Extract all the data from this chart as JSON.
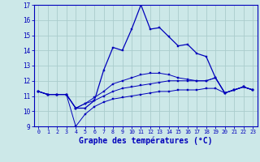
{
  "title": "Graphe des températures (°C)",
  "bg_color": "#cce8e8",
  "grid_color": "#aacccc",
  "line_color": "#0000bb",
  "hours": [
    0,
    1,
    2,
    3,
    4,
    5,
    6,
    7,
    8,
    9,
    10,
    11,
    12,
    13,
    14,
    15,
    16,
    17,
    18,
    19,
    20,
    21,
    22,
    23
  ],
  "temp_main": [
    11.3,
    11.1,
    11.1,
    11.1,
    10.2,
    10.2,
    10.7,
    12.7,
    14.2,
    14.0,
    15.4,
    17.0,
    15.4,
    15.5,
    14.9,
    14.3,
    14.4,
    13.8,
    13.6,
    12.2,
    11.2,
    11.4,
    11.6,
    11.4
  ],
  "temp_low": [
    11.3,
    11.1,
    11.1,
    11.1,
    9.0,
    9.8,
    10.3,
    10.6,
    10.8,
    10.9,
    11.0,
    11.1,
    11.2,
    11.3,
    11.3,
    11.4,
    11.4,
    11.4,
    11.5,
    11.5,
    11.2,
    11.4,
    11.6,
    11.4
  ],
  "temp_mid": [
    11.3,
    11.1,
    11.1,
    11.1,
    10.2,
    10.5,
    10.7,
    11.0,
    11.3,
    11.5,
    11.6,
    11.7,
    11.8,
    11.9,
    12.0,
    12.0,
    12.0,
    12.0,
    12.0,
    12.2,
    11.2,
    11.4,
    11.6,
    11.4
  ],
  "temp_high": [
    11.3,
    11.1,
    11.1,
    11.1,
    10.2,
    10.5,
    10.9,
    11.3,
    11.8,
    12.0,
    12.2,
    12.4,
    12.5,
    12.5,
    12.4,
    12.2,
    12.1,
    12.0,
    12.0,
    12.2,
    11.2,
    11.4,
    11.6,
    11.4
  ],
  "ylim": [
    9,
    17
  ],
  "xlim": [
    -0.5,
    23.5
  ],
  "yticks": [
    9,
    10,
    11,
    12,
    13,
    14,
    15,
    16,
    17
  ],
  "xticks": [
    0,
    1,
    2,
    3,
    4,
    5,
    6,
    7,
    8,
    9,
    10,
    11,
    12,
    13,
    14,
    15,
    16,
    17,
    18,
    19,
    20,
    21,
    22,
    23
  ],
  "xlabel_fontsize": 7,
  "ylabel_fontsize": 5.5,
  "xlabel_fontweight": "bold"
}
